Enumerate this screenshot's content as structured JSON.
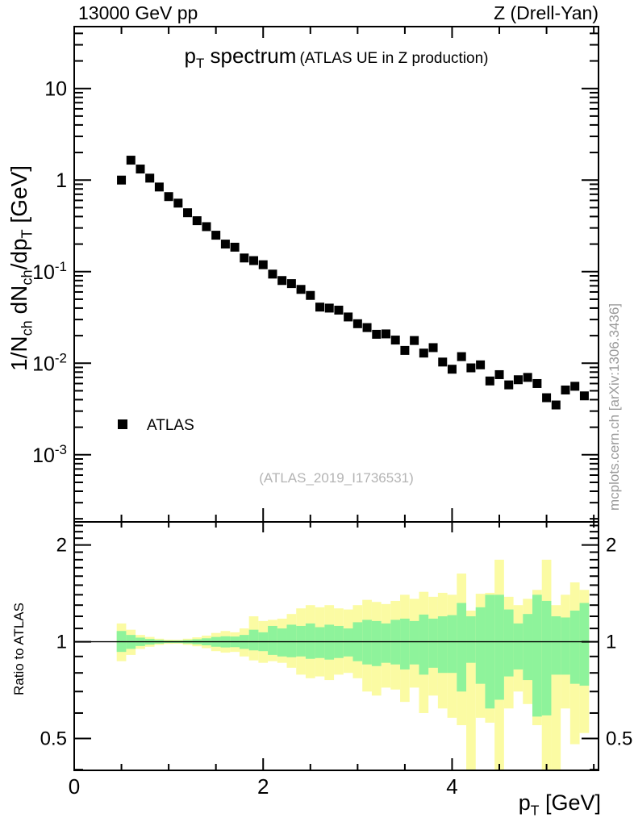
{
  "header": {
    "left": "13000 GeV pp",
    "right": "Z (Drell-Yan)"
  },
  "title": {
    "main": [
      {
        "t": "p"
      },
      {
        "t": "T",
        "sub": true
      },
      {
        "t": " spectrum"
      }
    ],
    "paren": "(ATLAS UE in Z production)"
  },
  "axes": {
    "top_ylabel": [
      {
        "t": "1/N"
      },
      {
        "t": "ch",
        "sub": true
      },
      {
        "t": " dN"
      },
      {
        "t": "ch",
        "sub": true
      },
      {
        "t": "/dp"
      },
      {
        "t": "T",
        "sub": true
      },
      {
        "t": " [GeV]"
      }
    ],
    "ratio_ylabel": "Ratio to ATLAS",
    "xlabel": [
      {
        "t": "p"
      },
      {
        "t": "T",
        "sub": true
      },
      {
        "t": " [GeV]"
      }
    ],
    "x": {
      "lim": [
        0,
        5.55
      ],
      "major": [
        0,
        2,
        4
      ],
      "labels": [
        "0",
        "2",
        "4"
      ],
      "minor_step": 0.5
    },
    "top_y": {
      "scale": "log10",
      "lim": [
        0.000185,
        47.4
      ],
      "majors": [
        {
          "v": 10,
          "base": "10",
          "exp": ""
        },
        {
          "v": 1,
          "base": "1",
          "exp": ""
        },
        {
          "v": 0.1,
          "base": "10",
          "exp": "-1"
        },
        {
          "v": 0.01,
          "base": "10",
          "exp": "-2"
        },
        {
          "v": 0.001,
          "base": "10",
          "exp": "-3"
        }
      ]
    },
    "ratio_y": {
      "scale": "log",
      "lim": [
        0.398,
        2.36
      ],
      "majors": [
        {
          "v": 2,
          "label": "2"
        },
        {
          "v": 1,
          "label": "1"
        },
        {
          "v": 0.5,
          "label": "0.5"
        }
      ],
      "minor_range": [
        0.4,
        2.3
      ],
      "minor_step": 0.1
    }
  },
  "legend": {
    "label": "ATLAS",
    "marker": "filled-square",
    "marker_color": "#000000"
  },
  "watermark": "(ATLAS_2019_I1736531)",
  "side_note": "mcplots.cern.ch [arXiv:1306.3436]",
  "colors": {
    "band_outer": "#fbfba3",
    "band_inner": "#8ef39b",
    "marker": "#000000",
    "frame": "#000000",
    "watermark_text": "#b4b4b4",
    "side_text": "#9a9a9a"
  },
  "chart_data": [
    {
      "panel": "main",
      "type": "scatter",
      "yscale": "log",
      "xlim": [
        0,
        5.55
      ],
      "ylim": [
        0.000185,
        47.4
      ],
      "title": "pT spectrum (ATLAS UE in Z production)",
      "xlabel": "pT [GeV]",
      "ylabel": "1/Nch dNch/dpT [GeV]",
      "series": [
        {
          "name": "ATLAS",
          "marker": "filled-square",
          "color": "#000000",
          "x": [
            0.5,
            0.6,
            0.7,
            0.8,
            0.9,
            1.0,
            1.1,
            1.2,
            1.3,
            1.4,
            1.5,
            1.6,
            1.7,
            1.8,
            1.9,
            2.0,
            2.1,
            2.2,
            2.3,
            2.4,
            2.5,
            2.6,
            2.7,
            2.8,
            2.9,
            3.0,
            3.1,
            3.2,
            3.3,
            3.4,
            3.5,
            3.6,
            3.7,
            3.8,
            3.9,
            4.0,
            4.1,
            4.2,
            4.3,
            4.4,
            4.5,
            4.6,
            4.7,
            4.8,
            4.9,
            5.0,
            5.1,
            5.2,
            5.3,
            5.4
          ],
          "y": [
            1.0,
            1.65,
            1.32,
            1.05,
            0.84,
            0.66,
            0.56,
            0.44,
            0.36,
            0.31,
            0.25,
            0.2,
            0.185,
            0.141,
            0.132,
            0.119,
            0.094,
            0.08,
            0.074,
            0.064,
            0.055,
            0.041,
            0.04,
            0.038,
            0.032,
            0.027,
            0.0245,
            0.0207,
            0.0209,
            0.0179,
            0.0138,
            0.0177,
            0.0129,
            0.0148,
            0.0103,
            0.0086,
            0.0118,
            0.0089,
            0.0096,
            0.0064,
            0.0075,
            0.0058,
            0.0066,
            0.007,
            0.006,
            0.0042,
            0.0035,
            0.0051,
            0.0056,
            0.0044
          ]
        }
      ]
    },
    {
      "panel": "ratio",
      "type": "band",
      "yscale": "log",
      "ylim": [
        0.398,
        2.36
      ],
      "ylabel": "Ratio to ATLAS",
      "reference": 1,
      "bin_width": 0.1,
      "x": [
        0.5,
        0.6,
        0.7,
        0.8,
        0.9,
        1.0,
        1.1,
        1.2,
        1.3,
        1.4,
        1.5,
        1.6,
        1.7,
        1.8,
        1.9,
        2.0,
        2.1,
        2.2,
        2.3,
        2.4,
        2.5,
        2.6,
        2.7,
        2.8,
        2.9,
        3.0,
        3.1,
        3.2,
        3.3,
        3.4,
        3.5,
        3.6,
        3.7,
        3.8,
        3.9,
        4.0,
        4.1,
        4.2,
        4.3,
        4.4,
        4.5,
        4.6,
        4.7,
        4.8,
        4.9,
        5.0,
        5.1,
        5.2,
        5.3,
        5.4
      ],
      "yellow_hi": [
        1.14,
        1.09,
        1.05,
        1.035,
        1.022,
        1.015,
        1.014,
        1.022,
        1.032,
        1.045,
        1.065,
        1.08,
        1.07,
        1.1,
        1.2,
        1.16,
        1.17,
        1.18,
        1.22,
        1.27,
        1.3,
        1.28,
        1.3,
        1.27,
        1.26,
        1.3,
        1.35,
        1.33,
        1.31,
        1.34,
        1.4,
        1.36,
        1.43,
        1.38,
        1.42,
        1.4,
        1.63,
        1.25,
        1.41,
        1.42,
        1.8,
        1.38,
        1.3,
        1.36,
        1.45,
        1.8,
        1.3,
        1.4,
        1.53,
        1.45
      ],
      "yellow_lo": [
        0.87,
        0.91,
        0.95,
        0.965,
        0.978,
        0.985,
        0.986,
        0.978,
        0.968,
        0.955,
        0.935,
        0.925,
        0.93,
        0.9,
        0.875,
        0.86,
        0.87,
        0.86,
        0.83,
        0.79,
        0.77,
        0.78,
        0.76,
        0.79,
        0.8,
        0.77,
        0.7,
        0.68,
        0.72,
        0.71,
        0.65,
        0.72,
        0.6,
        0.68,
        0.62,
        0.58,
        0.55,
        0.35,
        0.58,
        0.56,
        0.35,
        0.62,
        0.7,
        0.64,
        0.55,
        0.35,
        0.35,
        0.62,
        0.48,
        0.52
      ],
      "green_hi": [
        1.08,
        1.05,
        1.03,
        1.02,
        1.013,
        1.008,
        1.008,
        1.012,
        1.018,
        1.025,
        1.035,
        1.04,
        1.038,
        1.05,
        1.09,
        1.07,
        1.12,
        1.1,
        1.13,
        1.12,
        1.14,
        1.11,
        1.13,
        1.12,
        1.1,
        1.15,
        1.17,
        1.16,
        1.14,
        1.17,
        1.18,
        1.16,
        1.215,
        1.18,
        1.2,
        1.21,
        1.32,
        1.2,
        1.28,
        1.4,
        1.4,
        1.26,
        1.14,
        1.22,
        1.4,
        1.34,
        1.2,
        1.19,
        1.25,
        1.32
      ],
      "green_lo": [
        0.93,
        0.95,
        0.97,
        0.98,
        0.987,
        0.992,
        0.992,
        0.988,
        0.982,
        0.975,
        0.965,
        0.96,
        0.962,
        0.95,
        0.94,
        0.935,
        0.91,
        0.9,
        0.895,
        0.9,
        0.885,
        0.89,
        0.88,
        0.89,
        0.9,
        0.87,
        0.85,
        0.84,
        0.86,
        0.85,
        0.82,
        0.85,
        0.79,
        0.83,
        0.8,
        0.8,
        0.7,
        0.86,
        0.74,
        0.62,
        0.66,
        0.78,
        0.82,
        0.76,
        0.585,
        0.59,
        0.79,
        0.79,
        0.74,
        0.73
      ]
    }
  ]
}
